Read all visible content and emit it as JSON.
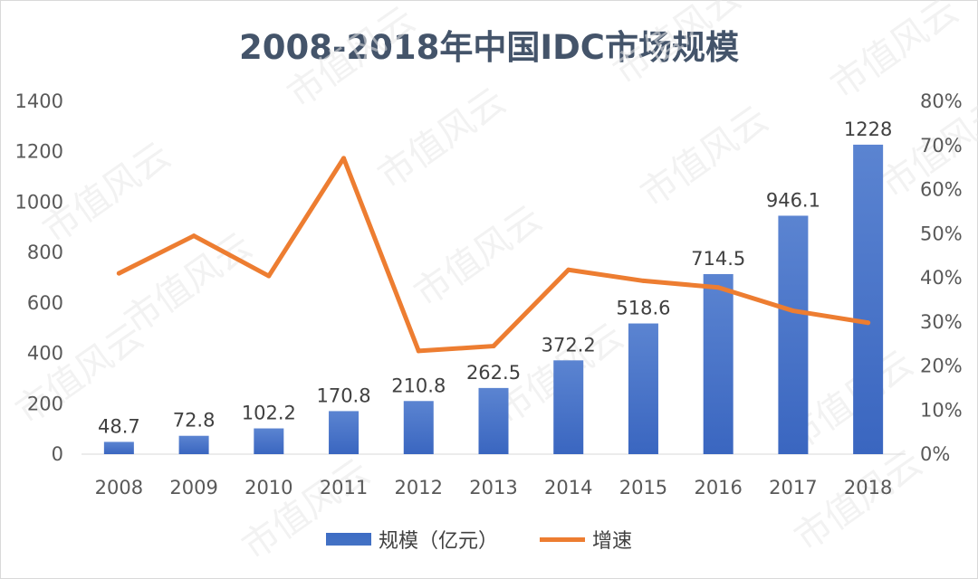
{
  "chart_data": {
    "type": "bar",
    "title": "2008-2018年中国IDC市场规模",
    "categories": [
      "2008",
      "2009",
      "2010",
      "2011",
      "2012",
      "2013",
      "2014",
      "2015",
      "2016",
      "2017",
      "2018"
    ],
    "series": [
      {
        "name": "规模（亿元）",
        "type": "bar",
        "axis": "left",
        "color": "#4472c4",
        "values": [
          48.7,
          72.8,
          102.2,
          170.8,
          210.8,
          262.5,
          372.2,
          518.6,
          714.5,
          946.1,
          1228
        ]
      },
      {
        "name": "增速",
        "type": "line",
        "axis": "right",
        "color": "#ed7d31",
        "values": [
          0.41,
          0.495,
          0.404,
          0.671,
          0.234,
          0.245,
          0.418,
          0.393,
          0.378,
          0.325,
          0.298
        ]
      }
    ],
    "ylim_left": [
      0,
      1400
    ],
    "yticks_left": [
      "0",
      "200",
      "400",
      "600",
      "800",
      "1000",
      "1200",
      "1400"
    ],
    "ylim_right": [
      0,
      0.8
    ],
    "yticks_right": [
      "0%",
      "10%",
      "20%",
      "30%",
      "40%",
      "50%",
      "60%",
      "70%",
      "80%"
    ],
    "data_labels": [
      "48.7",
      "72.8",
      "102.2",
      "170.8",
      "210.8",
      "262.5",
      "372.2",
      "518.6",
      "714.5",
      "946.1",
      "1228"
    ],
    "legend_position": "bottom",
    "grid": false
  },
  "watermark_text": "市值风云"
}
